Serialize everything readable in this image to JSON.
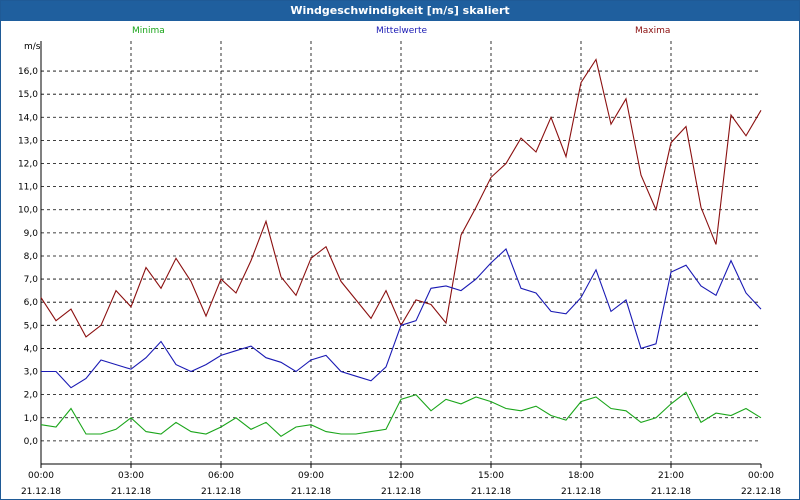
{
  "window": {
    "title": "Windgeschwindigkeit [m/s] skaliert"
  },
  "colors": {
    "min": "#1aa51a",
    "mean": "#1a1ab4",
    "max": "#8b1010",
    "grid": "#000000"
  },
  "legend": [
    {
      "label": "Minima",
      "color": "#1aa51a"
    },
    {
      "label": "Mittelwerte",
      "color": "#1a1ab4"
    },
    {
      "label": "Maxima",
      "color": "#8b1010"
    }
  ],
  "chart_data": {
    "type": "line",
    "title": "Windgeschwindigkeit [m/s] skaliert",
    "ylabel": "m/s",
    "xlabel": "",
    "ylim": [
      -1.0,
      17.3
    ],
    "yticks": [
      0.0,
      1.0,
      2.0,
      3.0,
      4.0,
      5.0,
      6.0,
      7.0,
      8.0,
      9.0,
      10.0,
      11.0,
      12.0,
      13.0,
      14.0,
      15.0,
      16.0
    ],
    "ytick_labels": [
      "0,0",
      "1,0",
      "2,0",
      "3,0",
      "4,0",
      "5,0",
      "6,0",
      "7,0",
      "8,0",
      "9,0",
      "10,0",
      "11,0",
      "12,0",
      "13,0",
      "14,0",
      "15,0",
      "16,0"
    ],
    "xlim": [
      0,
      24
    ],
    "xticks": [
      {
        "hour": 0,
        "time": "00:00",
        "date": "21.12.18"
      },
      {
        "hour": 3,
        "time": "03:00",
        "date": "21.12.18"
      },
      {
        "hour": 6,
        "time": "06:00",
        "date": "21.12.18"
      },
      {
        "hour": 9,
        "time": "09:00",
        "date": "21.12.18"
      },
      {
        "hour": 12,
        "time": "12:00",
        "date": "21.12.18"
      },
      {
        "hour": 15,
        "time": "15:00",
        "date": "21.12.18"
      },
      {
        "hour": 18,
        "time": "18:00",
        "date": "21.12.18"
      },
      {
        "hour": 21,
        "time": "21:00",
        "date": "21.12.18"
      },
      {
        "hour": 24,
        "time": "00:00",
        "date": "22.12.18"
      }
    ],
    "grid": true,
    "legend_position": "top",
    "x": [
      0,
      0.5,
      1,
      1.5,
      2,
      2.5,
      3,
      3.5,
      4,
      4.5,
      5,
      5.5,
      6,
      6.5,
      7,
      7.5,
      8,
      8.5,
      9,
      9.5,
      10,
      10.5,
      11,
      11.5,
      12,
      12.5,
      13,
      13.5,
      14,
      14.5,
      15,
      15.5,
      16,
      16.5,
      17,
      17.5,
      18,
      18.5,
      19,
      19.5,
      20,
      20.5,
      21,
      21.5,
      22,
      22.5,
      23,
      23.5,
      24
    ],
    "series": [
      {
        "name": "Maxima",
        "color": "#8b1010",
        "values": [
          6.2,
          5.2,
          5.7,
          4.5,
          5.0,
          6.5,
          5.8,
          7.5,
          6.6,
          7.9,
          6.9,
          5.4,
          7.0,
          6.4,
          7.8,
          9.5,
          7.1,
          6.3,
          7.9,
          8.4,
          6.9,
          6.1,
          5.3,
          6.5,
          5.0,
          6.1,
          5.9,
          5.1,
          8.9,
          10.1,
          11.4,
          12.0,
          13.1,
          12.5,
          14.0,
          12.3,
          15.5,
          16.5,
          13.7,
          14.8,
          11.5,
          10.0,
          12.9,
          13.6,
          10.1,
          8.5,
          14.1,
          13.2,
          14.3
        ]
      },
      {
        "name": "Mittelwerte",
        "color": "#1a1ab4",
        "values": [
          3.0,
          3.0,
          2.3,
          2.7,
          3.5,
          3.3,
          3.1,
          3.6,
          4.3,
          3.3,
          3.0,
          3.3,
          3.7,
          3.9,
          4.1,
          3.6,
          3.4,
          3.0,
          3.5,
          3.7,
          3.0,
          2.8,
          2.6,
          3.2,
          5.0,
          5.2,
          6.6,
          6.7,
          6.5,
          7.0,
          7.7,
          8.3,
          6.6,
          6.4,
          5.6,
          5.5,
          6.2,
          7.4,
          5.6,
          6.1,
          4.0,
          4.2,
          7.3,
          7.6,
          6.7,
          6.3,
          7.8,
          6.4,
          5.7
        ]
      },
      {
        "name": "Minima",
        "color": "#1aa51a",
        "values": [
          0.7,
          0.6,
          1.4,
          0.3,
          0.3,
          0.5,
          1.0,
          0.4,
          0.3,
          0.8,
          0.4,
          0.3,
          0.6,
          1.0,
          0.5,
          0.8,
          0.2,
          0.6,
          0.7,
          0.4,
          0.3,
          0.3,
          0.4,
          0.5,
          1.8,
          2.0,
          1.3,
          1.8,
          1.6,
          1.9,
          1.7,
          1.4,
          1.3,
          1.5,
          1.1,
          0.9,
          1.7,
          1.9,
          1.4,
          1.3,
          0.8,
          1.0,
          1.6,
          2.1,
          0.8,
          1.2,
          1.1,
          1.4,
          1.0
        ]
      }
    ]
  }
}
